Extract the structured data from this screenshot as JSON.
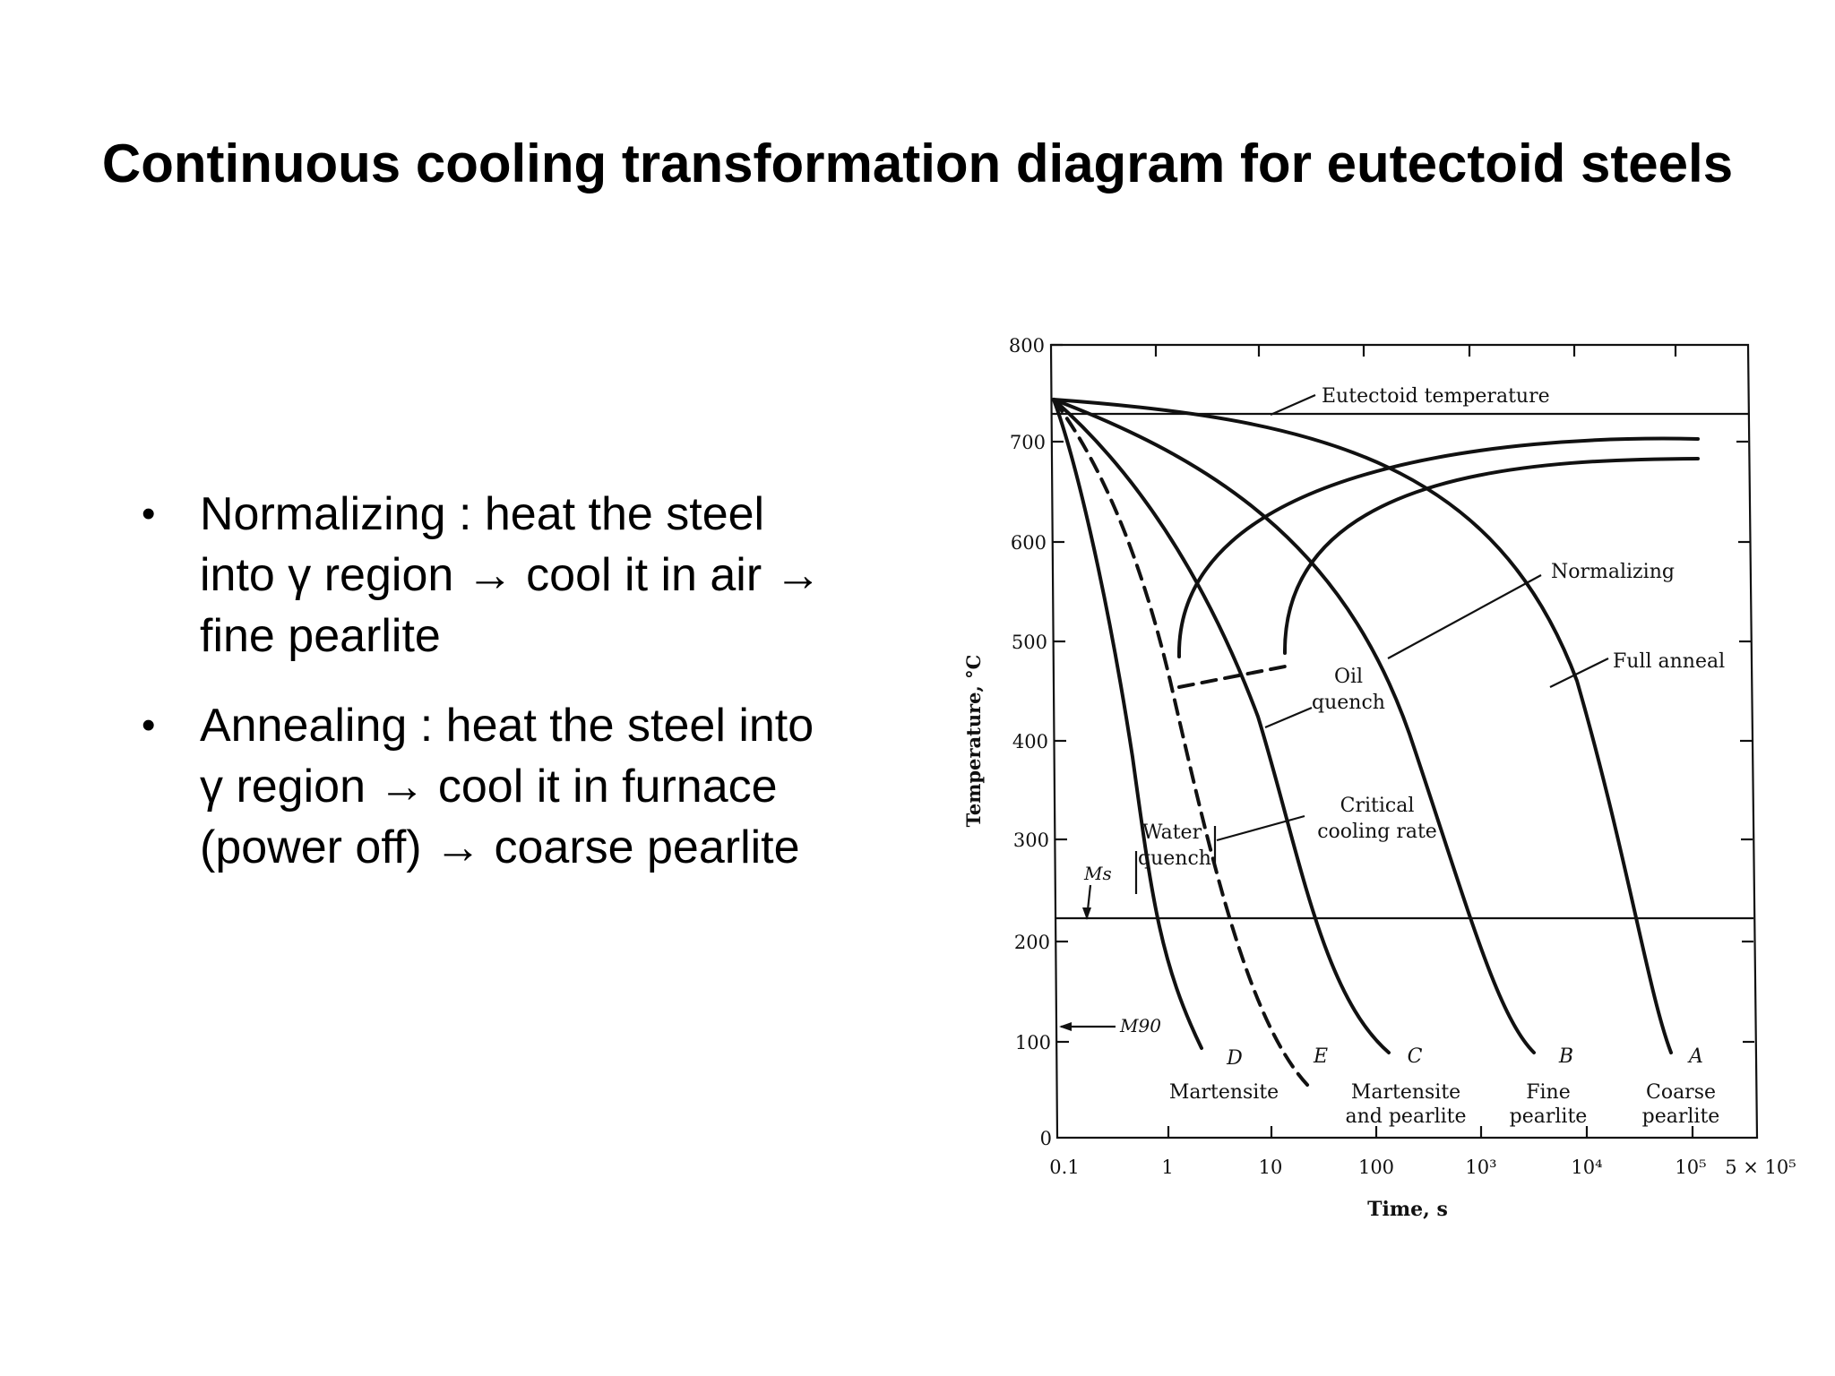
{
  "title": "Continuous cooling transformation diagram for eutectoid steels",
  "bullets": [
    {
      "line1": "Normalizing : heat the steel",
      "line2": "into γ region → cool it in air →",
      "line3": "fine pearlite"
    },
    {
      "line1": "Annealing : heat the steel into",
      "line2": "γ region → cool it in furnace",
      "line3": "(power off) → coarse pearlite"
    }
  ],
  "diagram": {
    "ylabel": "Temperature, °C",
    "xlabel": "Time, s",
    "y_ticks": [
      "800",
      "700",
      "600",
      "500",
      "400",
      "300",
      "200",
      "100",
      "0"
    ],
    "x_ticks": [
      "0.1",
      "1",
      "10",
      "100",
      "10³",
      "10⁴",
      "10⁵",
      "5 × 10⁵"
    ],
    "annotations": {
      "eutectoid": "Eutectoid temperature",
      "normalizing": "Normalizing",
      "full_anneal": "Full anneal",
      "oil_line1": "Oil",
      "oil_line2": "quench",
      "critical_line1": "Critical",
      "critical_line2": "cooling rate",
      "water_line1": "Water",
      "water_line2": "quench",
      "ms": "Ms",
      "m90": "M90"
    },
    "curve_letters": [
      "D",
      "E",
      "C",
      "B",
      "A"
    ],
    "products": {
      "d": "Martensite",
      "c_line1": "Martensite",
      "c_line2": "and pearlite",
      "b_line1": "Fine",
      "b_line2": "pearlite",
      "a_line1": "Coarse",
      "a_line2": "pearlite"
    },
    "eutectoid_temp_c": 727,
    "ms_temp_c": 220,
    "m90_temp_c": 110
  }
}
